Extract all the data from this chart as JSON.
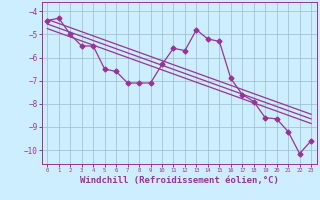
{
  "xlabel": "Windchill (Refroidissement éolien,°C)",
  "bg_color": "#cceeff",
  "line_color": "#993399",
  "grid_color": "#99bbcc",
  "xlim": [
    -0.5,
    23.5
  ],
  "ylim": [
    -10.6,
    -3.6
  ],
  "yticks": [
    -10,
    -9,
    -8,
    -7,
    -6,
    -5,
    -4
  ],
  "xticks": [
    0,
    1,
    2,
    3,
    4,
    5,
    6,
    7,
    8,
    9,
    10,
    11,
    12,
    13,
    14,
    15,
    16,
    17,
    18,
    19,
    20,
    21,
    22,
    23
  ],
  "series": [
    [
      0,
      -4.4
    ],
    [
      1,
      -4.3
    ],
    [
      2,
      -5.0
    ],
    [
      3,
      -5.5
    ],
    [
      4,
      -5.5
    ],
    [
      5,
      -6.5
    ],
    [
      6,
      -6.6
    ],
    [
      7,
      -7.1
    ],
    [
      8,
      -7.1
    ],
    [
      9,
      -7.1
    ],
    [
      10,
      -6.3
    ],
    [
      11,
      -5.6
    ],
    [
      12,
      -5.7
    ],
    [
      13,
      -4.8
    ],
    [
      14,
      -5.2
    ],
    [
      15,
      -5.3
    ],
    [
      16,
      -6.9
    ],
    [
      17,
      -7.6
    ],
    [
      18,
      -7.9
    ],
    [
      19,
      -8.6
    ],
    [
      20,
      -8.65
    ],
    [
      21,
      -9.2
    ],
    [
      22,
      -10.15
    ],
    [
      23,
      -9.6
    ]
  ],
  "regression_lines": [
    {
      "x": [
        0,
        23
      ],
      "y": [
        -4.35,
        -8.45
      ]
    },
    {
      "x": [
        0,
        23
      ],
      "y": [
        -4.55,
        -8.65
      ]
    },
    {
      "x": [
        0,
        23
      ],
      "y": [
        -4.75,
        -8.85
      ]
    }
  ],
  "marker": "D",
  "markersize": 2.5,
  "linewidth": 0.9
}
